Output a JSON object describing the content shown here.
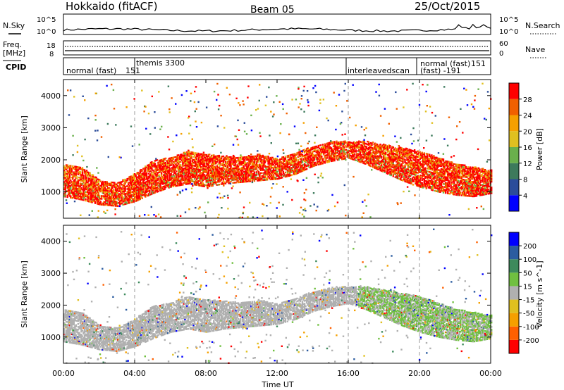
{
  "header": {
    "title": "Hokkaido (fitACF)",
    "beam": "Beam 05",
    "date": "25/Oct/2015"
  },
  "noise_panel": {
    "label": "N.Sky",
    "right_label": "N.Search",
    "left_ticks": [
      "10^5",
      "10^0"
    ],
    "right_ticks": [
      "10^5",
      "10^0"
    ]
  },
  "freq_panel": {
    "label_top": "Freq.",
    "label_unit": "[MHz]",
    "left_ticks": [
      "18",
      "8"
    ],
    "right_ticks": [
      "60",
      "0"
    ],
    "right_label": "Nave"
  },
  "cpid_panel": {
    "label": "CPID",
    "segments": [
      {
        "text": "normal (fast)",
        "start_hour": 0,
        "end_hour": 4
      },
      {
        "text": "151",
        "start_hour": 0,
        "end_hour": 4
      },
      {
        "text": "themis 3300",
        "start_hour": 4,
        "end_hour": 16
      },
      {
        "text": "interleavedscan",
        "start_hour": 16,
        "end_hour": 20
      },
      {
        "text": "normal (fast)",
        "start_hour": 20,
        "end_hour": 24
      },
      {
        "text": "(fast) -191",
        "start_hour": 20,
        "end_hour": 24
      },
      {
        "text": "151",
        "start_hour": 20,
        "end_hour": 24
      }
    ]
  },
  "x_axis": {
    "label": "Time UT",
    "ticks": [
      "00:00",
      "04:00",
      "08:00",
      "12:00",
      "16:00",
      "20:00",
      "00:00"
    ]
  },
  "colors": {
    "power": [
      "#0000ff",
      "#2b4c9a",
      "#3d7a5c",
      "#6ab04c",
      "#e0c020",
      "#f5a000",
      "#f06000",
      "#ff0000"
    ],
    "velocity": [
      "#ff0000",
      "#ff6000",
      "#f5a000",
      "#e0c020",
      "#b0b0b0",
      "#70c040",
      "#3d8a5c",
      "#2b5ca0",
      "#0000ff"
    ]
  },
  "chart_data": [
    {
      "type": "heatmap",
      "name": "power",
      "ylabel": "Slant Range [km]",
      "yticks": [
        "4000",
        "3000",
        "2000",
        "1000"
      ],
      "colorbar_label": "Power [dB]",
      "colorbar_ticks": [
        "28",
        "24",
        "20",
        "16",
        "12",
        "8",
        "4"
      ],
      "ylim": [
        180,
        4500
      ],
      "xlim": [
        0,
        24
      ],
      "main_band": {
        "hours": [
          0,
          1,
          2,
          3,
          4,
          5,
          6,
          7,
          8,
          9,
          10,
          11,
          12,
          13,
          14,
          15,
          16,
          17,
          18,
          19,
          20,
          21,
          22,
          23,
          24
        ],
        "lower_km": [
          900,
          800,
          650,
          600,
          750,
          1000,
          1200,
          1300,
          1200,
          1300,
          1350,
          1400,
          1450,
          1600,
          1850,
          2000,
          2100,
          1900,
          1650,
          1400,
          1200,
          1050,
          950,
          900,
          1000
        ],
        "upper_km": [
          1800,
          1700,
          1300,
          1200,
          1500,
          1900,
          2000,
          2200,
          2100,
          2050,
          2000,
          2100,
          1950,
          2150,
          2350,
          2500,
          2500,
          2500,
          2400,
          2300,
          2200,
          2000,
          1800,
          1700,
          1600
        ]
      }
    },
    {
      "type": "heatmap",
      "name": "velocity",
      "ylabel": "Slant Range [km]",
      "yticks": [
        "4000",
        "3000",
        "2000",
        "1000"
      ],
      "colorbar_label": "Velocity [m s^-1]",
      "colorbar_ticks": [
        "200",
        "100",
        "50",
        "15",
        "-15",
        "-50",
        "-100",
        "-200"
      ],
      "ylim": [
        180,
        4500
      ],
      "xlim": [
        0,
        24
      ]
    }
  ]
}
